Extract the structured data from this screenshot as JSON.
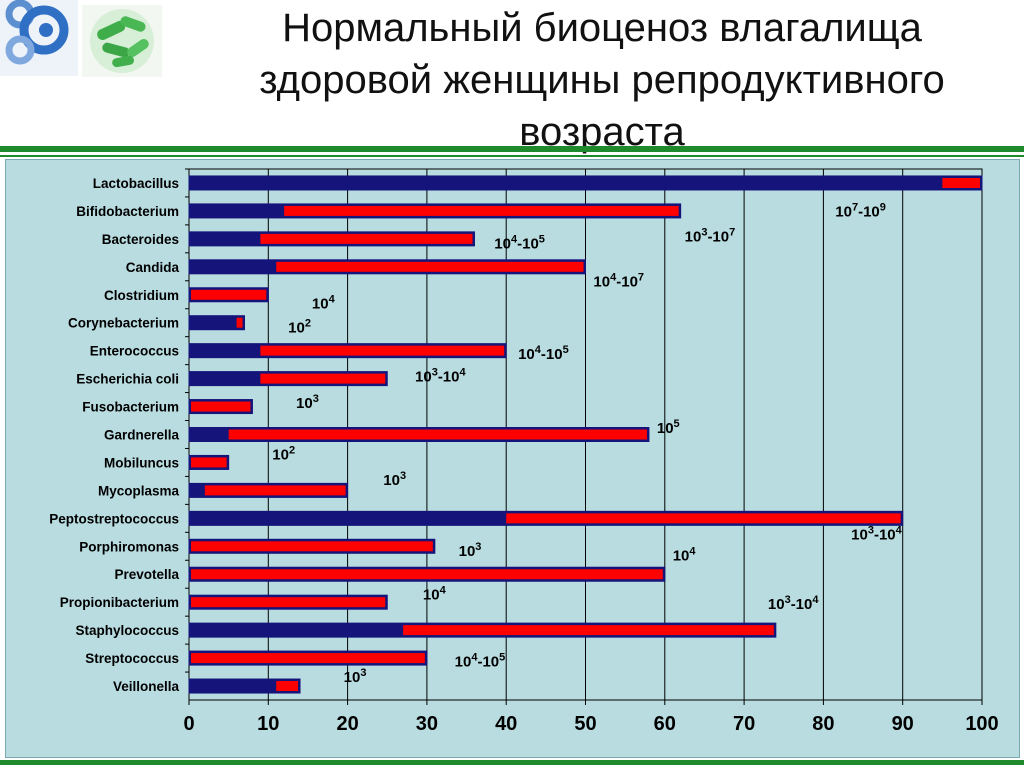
{
  "slide": {
    "title_lines": [
      "Нормальный биоценоз влагалища",
      "здоровой женщины репродуктивного",
      "возраста"
    ]
  },
  "colors": {
    "accent_green": "#1f8a2b",
    "chart_background": "#b8dce0",
    "series_base": "#14147a",
    "series_overlay": "#ff0000"
  },
  "icons": {
    "logo_left": "rings-logo-icon",
    "logo_right": "bacteria-icon"
  },
  "chart_data": {
    "type": "bar",
    "orientation": "horizontal",
    "stacked": true,
    "categories": [
      "Lactobacillus",
      "Bifidobacterium",
      "Bacteroides",
      "Candida",
      "Clostridium",
      "Corynebacterium",
      "Enterococcus",
      "Escherichia coli",
      "Fusobacterium",
      "Gardnerella",
      "Mobiluncus",
      "Mycoplasma",
      "Peptostreptococcus",
      "Porphiromonas",
      "Prevotella",
      "Propionibacterium",
      "Staphylococcus",
      "Streptococcus",
      "Veillonella"
    ],
    "series": [
      {
        "color": "#14147a",
        "values": [
          95,
          12,
          9,
          11,
          0,
          6,
          9,
          9,
          0,
          5,
          0,
          2,
          40,
          0,
          0,
          0,
          27,
          0,
          11
        ]
      },
      {
        "color": "#ff0000",
        "values": [
          5,
          50,
          27,
          39,
          10,
          1,
          31,
          16,
          8,
          53,
          5,
          18,
          50,
          31,
          60,
          25,
          47,
          30,
          3
        ]
      }
    ],
    "xlim": [
      0,
      100
    ],
    "xticks": [
      0,
      10,
      20,
      30,
      40,
      50,
      60,
      70,
      80,
      90,
      100
    ],
    "grid": true,
    "annotations": [
      {
        "base": "10",
        "exp": "7",
        "sep": "-",
        "base2": "10",
        "exp2": "9",
        "x": 81.5,
        "row": 1.7
      },
      {
        "base": "10",
        "exp": "3",
        "sep": "-",
        "base2": "10",
        "exp2": "7",
        "x": 62.5,
        "row": 2.6
      },
      {
        "base": "10",
        "exp": "4",
        "sep": "-",
        "base2": "10",
        "exp2": "5",
        "x": 38.5,
        "row": 2.85
      },
      {
        "base": "10",
        "exp": "4",
        "sep": "-",
        "base2": "10",
        "exp2": "7",
        "x": 51.0,
        "row": 4.2
      },
      {
        "base": "10",
        "exp": "4",
        "x": 15.5,
        "row": 5.0
      },
      {
        "base": "10",
        "exp": "2",
        "x": 12.5,
        "row": 5.85
      },
      {
        "base": "10",
        "exp": "4",
        "sep": "-",
        "base2": "10",
        "exp2": "5",
        "x": 41.5,
        "row": 6.8
      },
      {
        "base": "10",
        "exp": "3",
        "sep": "-",
        "base2": "10",
        "exp2": "4",
        "x": 28.5,
        "row": 7.6
      },
      {
        "base": "10",
        "exp": "3",
        "x": 13.5,
        "row": 8.55
      },
      {
        "base": "10",
        "exp": "5",
        "x": 59.0,
        "row": 9.45
      },
      {
        "base": "10",
        "exp": "2",
        "x": 10.5,
        "row": 10.4
      },
      {
        "base": "10",
        "exp": "3",
        "x": 24.5,
        "row": 11.3
      },
      {
        "base": "10",
        "exp": "3",
        "sep": "-",
        "base2": "10",
        "exp2": "4",
        "x": 83.5,
        "row": 13.25
      },
      {
        "base": "10",
        "exp": "3",
        "x": 34.0,
        "row": 13.85
      },
      {
        "base": "10",
        "exp": "4",
        "x": 61.0,
        "row": 14.0
      },
      {
        "base": "10",
        "exp": "4",
        "x": 29.5,
        "row": 15.4
      },
      {
        "base": "10",
        "exp": "3",
        "sep": "-",
        "base2": "10",
        "exp2": "4",
        "x": 73.0,
        "row": 15.75
      },
      {
        "base": "10",
        "exp": "4",
        "sep": "-",
        "base2": "10",
        "exp2": "5",
        "x": 33.5,
        "row": 17.8
      },
      {
        "base": "10",
        "exp": "3",
        "x": 19.5,
        "row": 18.35
      }
    ]
  }
}
